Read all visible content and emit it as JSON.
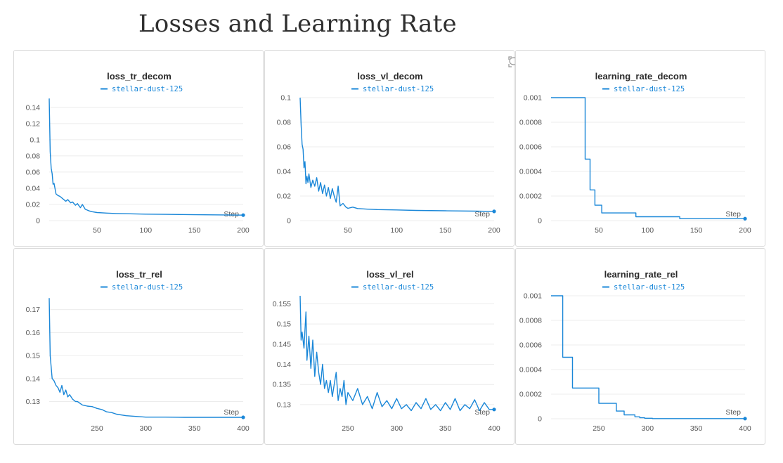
{
  "page": {
    "title": "Losses and Learning Rate"
  },
  "colors": {
    "series": "#1a87d8",
    "grid": "#ececec",
    "axis": "#555555"
  },
  "panel_tools": [
    "fullscreen-icon",
    "comment-icon"
  ],
  "chart_data": [
    {
      "type": "line",
      "title": "loss_tr_decom",
      "xlabel": "Step",
      "ylabel": "",
      "legend": "top-center",
      "grid": true,
      "xlim": [
        1,
        200
      ],
      "ylim": [
        0,
        0.152
      ],
      "xticks": [
        50,
        100,
        150,
        200
      ],
      "yticks": [
        0,
        0.02,
        0.04,
        0.06,
        0.08,
        0.1,
        0.12,
        0.14
      ],
      "ytick_labels": [
        "0",
        "0.02",
        "0.04",
        "0.06",
        "0.08",
        "0.1",
        "0.12",
        "0.14"
      ],
      "series": [
        {
          "name": "stellar-dust-125",
          "x": [
            1,
            2,
            3,
            4,
            5,
            6,
            8,
            10,
            12,
            15,
            18,
            20,
            23,
            25,
            28,
            30,
            33,
            35,
            38,
            40,
            42,
            45,
            50,
            60,
            70,
            80,
            100,
            120,
            150,
            180,
            200
          ],
          "y": [
            0.151,
            0.085,
            0.065,
            0.058,
            0.045,
            0.046,
            0.033,
            0.031,
            0.03,
            0.027,
            0.024,
            0.026,
            0.022,
            0.023,
            0.019,
            0.021,
            0.016,
            0.02,
            0.014,
            0.013,
            0.012,
            0.011,
            0.01,
            0.0093,
            0.0088,
            0.0085,
            0.008,
            0.0077,
            0.0073,
            0.007,
            0.0068
          ]
        }
      ]
    },
    {
      "type": "line",
      "title": "loss_vl_decom",
      "xlabel": "Step",
      "ylabel": "",
      "legend": "top-center",
      "grid": true,
      "xlim": [
        1,
        200
      ],
      "ylim": [
        0,
        0.1
      ],
      "xticks": [
        50,
        100,
        150,
        200
      ],
      "yticks": [
        0,
        0.02,
        0.04,
        0.06,
        0.08,
        0.1
      ],
      "ytick_labels": [
        "0",
        "0.02",
        "0.04",
        "0.06",
        "0.08",
        "0.1"
      ],
      "series": [
        {
          "name": "stellar-dust-125",
          "x": [
            1,
            2,
            3,
            4,
            5,
            6,
            7,
            8,
            9,
            10,
            12,
            14,
            16,
            18,
            20,
            22,
            24,
            26,
            28,
            30,
            32,
            34,
            36,
            38,
            40,
            42,
            45,
            48,
            50,
            55,
            60,
            70,
            80,
            100,
            120,
            150,
            180,
            200
          ],
          "y": [
            0.1,
            0.078,
            0.062,
            0.058,
            0.043,
            0.048,
            0.03,
            0.036,
            0.031,
            0.038,
            0.027,
            0.033,
            0.028,
            0.035,
            0.024,
            0.031,
            0.022,
            0.029,
            0.02,
            0.027,
            0.018,
            0.026,
            0.02,
            0.015,
            0.028,
            0.012,
            0.014,
            0.011,
            0.01,
            0.011,
            0.0098,
            0.0093,
            0.009,
            0.0087,
            0.0083,
            0.008,
            0.0077,
            0.0075
          ]
        }
      ]
    },
    {
      "type": "line",
      "title": "learning_rate_decom",
      "xlabel": "Step",
      "ylabel": "",
      "legend": "top-center",
      "grid": true,
      "xlim": [
        1,
        200
      ],
      "ylim": [
        0,
        0.001
      ],
      "xticks": [
        50,
        100,
        150,
        200
      ],
      "yticks": [
        0,
        0.0002,
        0.0004,
        0.0006,
        0.0008,
        0.001
      ],
      "ytick_labels": [
        "0",
        "0.0002",
        "0.0004",
        "0.0006",
        "0.0008",
        "0.001"
      ],
      "series": [
        {
          "name": "stellar-dust-125",
          "x": [
            1,
            36,
            36,
            41,
            41,
            46,
            46,
            53,
            53,
            88,
            88,
            133,
            133,
            145,
            145,
            175,
            175,
            200
          ],
          "y": [
            0.001,
            0.001,
            0.0005,
            0.0005,
            0.00025,
            0.00025,
            0.000125,
            0.000125,
            6.25e-05,
            6.25e-05,
            3.125e-05,
            3.125e-05,
            1.56e-05,
            1.56e-05,
            1.56e-05,
            1.56e-05,
            1.56e-05,
            1.56e-05
          ]
        }
      ]
    },
    {
      "type": "line",
      "title": "loss_tr_rel",
      "xlabel": "Step",
      "ylabel": "",
      "legend": "top-center",
      "grid": true,
      "xlim": [
        201,
        400
      ],
      "ylim": [
        0.1225,
        0.176
      ],
      "xticks": [
        250,
        300,
        350,
        400
      ],
      "yticks": [
        0.13,
        0.14,
        0.15,
        0.16,
        0.17
      ],
      "ytick_labels": [
        "0.13",
        "0.14",
        "0.15",
        "0.16",
        "0.17"
      ],
      "series": [
        {
          "name": "stellar-dust-125",
          "x": [
            201,
            202,
            203,
            204,
            206,
            208,
            210,
            212,
            214,
            216,
            218,
            220,
            222,
            225,
            228,
            230,
            235,
            240,
            245,
            250,
            255,
            260,
            265,
            270,
            280,
            290,
            300,
            320,
            340,
            360,
            380,
            400
          ],
          "y": [
            0.175,
            0.15,
            0.145,
            0.14,
            0.139,
            0.137,
            0.136,
            0.134,
            0.137,
            0.133,
            0.135,
            0.132,
            0.133,
            0.131,
            0.13,
            0.13,
            0.1285,
            0.128,
            0.1278,
            0.127,
            0.1265,
            0.1255,
            0.1252,
            0.1245,
            0.1238,
            0.1235,
            0.1232,
            0.1232,
            0.1231,
            0.1231,
            0.1231,
            0.1231
          ]
        }
      ]
    },
    {
      "type": "line",
      "title": "loss_vl_rel",
      "xlabel": "Step",
      "ylabel": "",
      "legend": "top-center",
      "grid": true,
      "xlim": [
        201,
        400
      ],
      "ylim": [
        0.1265,
        0.157
      ],
      "xticks": [
        250,
        300,
        350,
        400
      ],
      "yticks": [
        0.13,
        0.135,
        0.14,
        0.145,
        0.15,
        0.155
      ],
      "ytick_labels": [
        "0.13",
        "0.135",
        "0.14",
        "0.145",
        "0.15",
        "0.155"
      ],
      "series": [
        {
          "name": "stellar-dust-125",
          "x": [
            201,
            202,
            203,
            205,
            207,
            208,
            210,
            212,
            214,
            216,
            218,
            220,
            222,
            224,
            226,
            228,
            230,
            232,
            234,
            236,
            238,
            240,
            242,
            244,
            246,
            248,
            250,
            255,
            260,
            265,
            270,
            275,
            280,
            285,
            290,
            295,
            300,
            305,
            310,
            315,
            320,
            325,
            330,
            335,
            340,
            345,
            350,
            355,
            360,
            365,
            370,
            375,
            380,
            385,
            390,
            395,
            400
          ],
          "y": [
            0.157,
            0.146,
            0.148,
            0.144,
            0.153,
            0.141,
            0.147,
            0.139,
            0.146,
            0.137,
            0.143,
            0.138,
            0.135,
            0.14,
            0.134,
            0.136,
            0.133,
            0.136,
            0.132,
            0.135,
            0.138,
            0.131,
            0.134,
            0.132,
            0.136,
            0.13,
            0.133,
            0.131,
            0.134,
            0.13,
            0.132,
            0.129,
            0.133,
            0.1295,
            0.131,
            0.129,
            0.1315,
            0.129,
            0.13,
            0.1285,
            0.1305,
            0.129,
            0.1315,
            0.1288,
            0.13,
            0.1285,
            0.1305,
            0.1288,
            0.1315,
            0.1285,
            0.13,
            0.129,
            0.1312,
            0.1285,
            0.1305,
            0.1288,
            0.1288
          ]
        }
      ]
    },
    {
      "type": "line",
      "title": "learning_rate_rel",
      "xlabel": "Step",
      "ylabel": "",
      "legend": "top-center",
      "grid": true,
      "xlim": [
        201,
        400
      ],
      "ylim": [
        0,
        0.001
      ],
      "xticks": [
        250,
        300,
        350,
        400
      ],
      "yticks": [
        0,
        0.0002,
        0.0004,
        0.0006,
        0.0008,
        0.001
      ],
      "ytick_labels": [
        "0",
        "0.0002",
        "0.0004",
        "0.0006",
        "0.0008",
        "0.001"
      ],
      "series": [
        {
          "name": "stellar-dust-125",
          "x": [
            201,
            213,
            213,
            223,
            223,
            250,
            250,
            268,
            268,
            276,
            276,
            287,
            287,
            292,
            292,
            297,
            297,
            305,
            305,
            400
          ],
          "y": [
            0.001,
            0.001,
            0.0005,
            0.0005,
            0.00025,
            0.00025,
            0.000125,
            0.000125,
            6.25e-05,
            6.25e-05,
            3.125e-05,
            3.125e-05,
            1.56e-05,
            1.56e-05,
            7.8e-06,
            7.8e-06,
            3.9e-06,
            3.9e-06,
            1e-06,
            1e-06
          ]
        }
      ]
    }
  ]
}
